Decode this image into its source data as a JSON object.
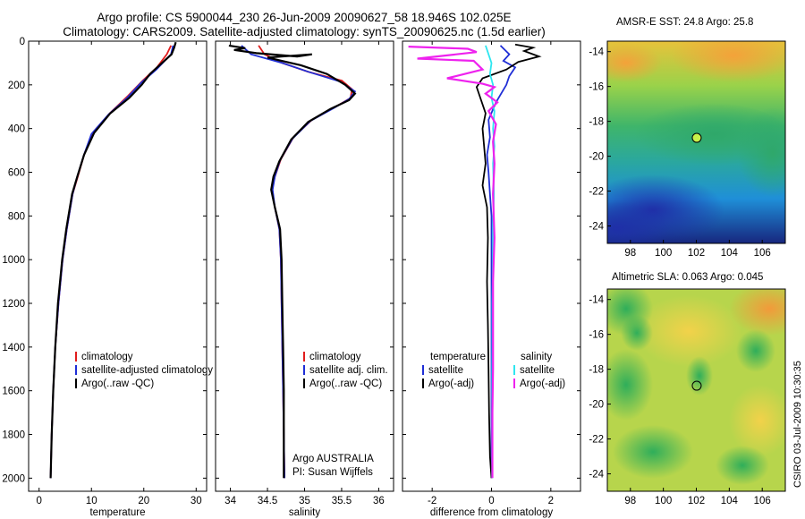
{
  "header": {
    "line1": "Argo profile: CS 5900044_230 26-Jun-2009 20090627_58 18.946S 102.025E",
    "line2": "Climatology: CARS2009. Satellite-adjusted climatology: synTS_20090625.nc (1.5d earlier)"
  },
  "stamp": "CSIRO 03-Jul-2009 10:30:35",
  "colors": {
    "climatology": "#e11d1d",
    "satellite": "#1f2ed6",
    "argo": "#000000",
    "satellite_salinity": "#2ee6f0",
    "argo_salinity": "#ee22ee"
  },
  "chart_data": [
    {
      "type": "line",
      "title": "",
      "xlabel": "temperature",
      "ylabel": "",
      "xlim": [
        -2,
        32
      ],
      "ylim": [
        2060,
        0
      ],
      "xticks": [
        0,
        10,
        20,
        30
      ],
      "yticks": [
        0,
        200,
        400,
        600,
        800,
        1000,
        1200,
        1400,
        1600,
        1800,
        2000
      ],
      "legend": [
        "climatology",
        "satellite-adjusted climatology",
        "Argo(..raw -QC)"
      ],
      "series": [
        {
          "name": "climatology",
          "color": "#e11d1d",
          "points": [
            [
              25.2,
              20
            ],
            [
              24.4,
              60
            ],
            [
              22.5,
              120
            ],
            [
              19.8,
              180
            ],
            [
              17,
              250
            ],
            [
              13.5,
              330
            ],
            [
              10.2,
              420
            ],
            [
              8.6,
              520
            ],
            [
              7.4,
              620
            ],
            [
              6.4,
              700
            ],
            [
              5.3,
              860
            ],
            [
              4.5,
              1000
            ],
            [
              3.7,
              1200
            ],
            [
              3.1,
              1400
            ],
            [
              2.7,
              1600
            ],
            [
              2.4,
              1800
            ],
            [
              2.2,
              2000
            ]
          ]
        },
        {
          "name": "satellite-adjusted climatology",
          "color": "#1f2ed6",
          "points": [
            [
              25.6,
              20
            ],
            [
              25.2,
              60
            ],
            [
              22.4,
              130
            ],
            [
              19.5,
              190
            ],
            [
              16.8,
              260
            ],
            [
              13.3,
              335
            ],
            [
              10,
              425
            ],
            [
              8.5,
              525
            ],
            [
              7.3,
              620
            ],
            [
              6.4,
              700
            ],
            [
              5.3,
              860
            ],
            [
              4.5,
              1000
            ],
            [
              3.7,
              1200
            ],
            [
              3.1,
              1400
            ],
            [
              2.7,
              1600
            ],
            [
              2.4,
              1800
            ],
            [
              2.2,
              2000
            ]
          ]
        },
        {
          "name": "Argo(..raw -QC)",
          "color": "#000000",
          "points": [
            [
              26.1,
              5
            ],
            [
              25.8,
              30
            ],
            [
              25.3,
              60
            ],
            [
              23,
              110
            ],
            [
              21.2,
              150
            ],
            [
              19.6,
              200
            ],
            [
              17.2,
              260
            ],
            [
              13.6,
              330
            ],
            [
              10.5,
              420
            ],
            [
              8.6,
              520
            ],
            [
              7.3,
              620
            ],
            [
              6.3,
              700
            ],
            [
              5.2,
              860
            ],
            [
              4.4,
              1000
            ],
            [
              3.6,
              1200
            ],
            [
              3.1,
              1400
            ],
            [
              2.7,
              1600
            ],
            [
              2.4,
              1800
            ],
            [
              2.2,
              2000
            ]
          ]
        }
      ]
    },
    {
      "type": "line",
      "title": "",
      "xlabel": "salinity",
      "ylabel": "",
      "xlim": [
        33.8,
        36.2
      ],
      "ylim": [
        2060,
        0
      ],
      "xticks": [
        34,
        34.5,
        35,
        35.5,
        36
      ],
      "legend": [
        "climatology",
        "satellite adj. clim.",
        "Argo(..raw -QC)"
      ],
      "annotation": [
        "Argo AUSTRALIA",
        "PI: Susan Wijffels"
      ],
      "series": [
        {
          "name": "climatology",
          "color": "#e11d1d",
          "points": [
            [
              34.38,
              20
            ],
            [
              34.46,
              60
            ],
            [
              34.7,
              100
            ],
            [
              35.05,
              140
            ],
            [
              35.5,
              180
            ],
            [
              35.64,
              220
            ],
            [
              35.62,
              260
            ],
            [
              35.42,
              300
            ],
            [
              35.1,
              360
            ],
            [
              34.85,
              440
            ],
            [
              34.68,
              540
            ],
            [
              34.6,
              620
            ],
            [
              34.56,
              680
            ],
            [
              34.6,
              760
            ],
            [
              34.66,
              860
            ],
            [
              34.68,
              1000
            ],
            [
              34.69,
              1200
            ],
            [
              34.7,
              1400
            ],
            [
              34.71,
              1600
            ],
            [
              34.72,
              1800
            ],
            [
              34.73,
              2000
            ]
          ]
        },
        {
          "name": "satellite adj. clim.",
          "color": "#1f2ed6",
          "points": [
            [
              34.15,
              20
            ],
            [
              34.28,
              60
            ],
            [
              34.7,
              100
            ],
            [
              35.05,
              140
            ],
            [
              35.48,
              185
            ],
            [
              35.68,
              230
            ],
            [
              35.6,
              265
            ],
            [
              35.4,
              305
            ],
            [
              35.08,
              365
            ],
            [
              34.84,
              445
            ],
            [
              34.67,
              545
            ],
            [
              34.6,
              620
            ],
            [
              34.57,
              680
            ],
            [
              34.6,
              760
            ],
            [
              34.66,
              860
            ],
            [
              34.68,
              1000
            ],
            [
              34.69,
              1200
            ],
            [
              34.7,
              1400
            ],
            [
              34.71,
              1600
            ],
            [
              34.72,
              1800
            ],
            [
              34.73,
              2000
            ]
          ]
        },
        {
          "name": "Argo(..raw -QC)",
          "color": "#000000",
          "points": [
            [
              33.98,
              20
            ],
            [
              34.2,
              32
            ],
            [
              34.05,
              40
            ],
            [
              34.35,
              55
            ],
            [
              34.9,
              70
            ],
            [
              35.1,
              60
            ],
            [
              34.5,
              75
            ],
            [
              34.95,
              110
            ],
            [
              35.3,
              150
            ],
            [
              35.55,
              200
            ],
            [
              35.68,
              240
            ],
            [
              35.6,
              270
            ],
            [
              35.35,
              310
            ],
            [
              35.05,
              370
            ],
            [
              34.82,
              450
            ],
            [
              34.66,
              550
            ],
            [
              34.58,
              620
            ],
            [
              34.55,
              680
            ],
            [
              34.6,
              760
            ],
            [
              34.67,
              860
            ],
            [
              34.69,
              1000
            ],
            [
              34.7,
              1200
            ],
            [
              34.71,
              1400
            ],
            [
              34.72,
              1600
            ],
            [
              34.72,
              1800
            ],
            [
              34.72,
              2000
            ]
          ]
        }
      ]
    },
    {
      "type": "line",
      "title": "",
      "xlabel": "difference from climatology",
      "ylabel": "",
      "xlim": [
        -3,
        3
      ],
      "ylim": [
        2060,
        0
      ],
      "xticks": [
        -2,
        0,
        2
      ],
      "legend_headers": [
        "temperature",
        "salinity"
      ],
      "legend": [
        "satellite",
        "Argo(-adj)",
        "satellite",
        "Argo(-adj)"
      ],
      "series": [
        {
          "name": "temperature satellite",
          "color": "#1f2ed6",
          "points": [
            [
              0.3,
              20
            ],
            [
              0.6,
              60
            ],
            [
              0.4,
              90
            ],
            [
              0.8,
              120
            ],
            [
              0.6,
              160
            ],
            [
              0.5,
              200
            ],
            [
              0.15,
              280
            ],
            [
              -0.1,
              360
            ],
            [
              -0.05,
              440
            ],
            [
              -0.15,
              520
            ],
            [
              -0.1,
              600
            ],
            [
              -0.05,
              700
            ],
            [
              0,
              800
            ],
            [
              0,
              1000
            ],
            [
              0,
              1200
            ],
            [
              0,
              1400
            ],
            [
              0,
              1600
            ],
            [
              0,
              1800
            ],
            [
              0,
              2000
            ]
          ]
        },
        {
          "name": "temperature Argo(-adj)",
          "color": "#000000",
          "points": [
            [
              0.8,
              15
            ],
            [
              1.4,
              30
            ],
            [
              1.1,
              45
            ],
            [
              1.6,
              70
            ],
            [
              0.9,
              95
            ],
            [
              0.5,
              130
            ],
            [
              -0.3,
              170
            ],
            [
              -0.5,
              210
            ],
            [
              -0.4,
              250
            ],
            [
              -0.2,
              330
            ],
            [
              -0.3,
              400
            ],
            [
              -0.25,
              480
            ],
            [
              -0.2,
              560
            ],
            [
              -0.3,
              660
            ],
            [
              -0.15,
              760
            ],
            [
              -0.12,
              900
            ],
            [
              -0.15,
              1100
            ],
            [
              -0.12,
              1300
            ],
            [
              -0.1,
              1500
            ],
            [
              -0.08,
              1700
            ],
            [
              -0.05,
              1900
            ],
            [
              0,
              2000
            ]
          ]
        },
        {
          "name": "salinity satellite",
          "color": "#2ee6f0",
          "points": [
            [
              -0.2,
              20
            ],
            [
              -0.1,
              60
            ],
            [
              0,
              100
            ],
            [
              -0.05,
              150
            ],
            [
              0.05,
              200
            ],
            [
              0,
              260
            ],
            [
              0.1,
              320
            ],
            [
              0.05,
              400
            ],
            [
              0.1,
              480
            ],
            [
              0.05,
              560
            ],
            [
              0.08,
              700
            ],
            [
              0.05,
              850
            ],
            [
              0.05,
              1000
            ],
            [
              0.03,
              1200
            ],
            [
              0.03,
              1400
            ],
            [
              0.02,
              1600
            ],
            [
              0.02,
              1800
            ],
            [
              0.02,
              2000
            ]
          ]
        },
        {
          "name": "salinity Argo(-adj)",
          "color": "#ee22ee",
          "points": [
            [
              -2.8,
              25
            ],
            [
              -0.8,
              35
            ],
            [
              -0.5,
              50
            ],
            [
              -2.5,
              80
            ],
            [
              -0.6,
              90
            ],
            [
              -0.3,
              130
            ],
            [
              -1.5,
              170
            ],
            [
              -0.3,
              195
            ],
            [
              0.1,
              210
            ],
            [
              -0.2,
              240
            ],
            [
              0.2,
              280
            ],
            [
              -0.1,
              320
            ],
            [
              0.15,
              380
            ],
            [
              0.05,
              460
            ],
            [
              0.1,
              560
            ],
            [
              0.05,
              700
            ],
            [
              0.1,
              900
            ],
            [
              0.05,
              1100
            ],
            [
              0.05,
              1300
            ],
            [
              0.05,
              1500
            ],
            [
              0.03,
              1700
            ],
            [
              0.03,
              1900
            ],
            [
              0.03,
              2000
            ]
          ]
        }
      ]
    },
    {
      "type": "heatmap",
      "title": "AMSR-E SST: 24.8 Argo: 25.8",
      "xlabel": "",
      "ylabel": "",
      "xlim": [
        96.6,
        107.4
      ],
      "ylim": [
        -25,
        -13.4
      ],
      "xticks": [
        98,
        100,
        102,
        104,
        106
      ],
      "yticks": [
        -14,
        -16,
        -18,
        -20,
        -22,
        -24
      ],
      "marker": {
        "lon": 102.025,
        "lat": -18.946
      }
    },
    {
      "type": "heatmap",
      "title": "Altimetric SLA: 0.063 Argo: 0.045",
      "xlabel": "",
      "ylabel": "",
      "xlim": [
        96.6,
        107.4
      ],
      "ylim": [
        -25,
        -13.4
      ],
      "xticks": [
        98,
        100,
        102,
        104,
        106
      ],
      "yticks": [
        -14,
        -16,
        -18,
        -20,
        -22,
        -24
      ],
      "marker": {
        "lon": 102.025,
        "lat": -18.946
      }
    }
  ]
}
